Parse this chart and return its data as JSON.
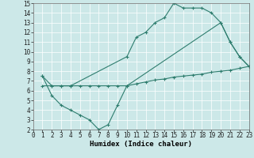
{
  "title": "",
  "xlabel": "Humidex (Indice chaleur)",
  "bg_color": "#cce8e8",
  "line_color": "#2e7d6e",
  "xlim": [
    0,
    23
  ],
  "ylim": [
    2,
    15
  ],
  "xticks": [
    0,
    1,
    2,
    3,
    4,
    5,
    6,
    7,
    8,
    9,
    10,
    11,
    12,
    13,
    14,
    15,
    16,
    17,
    18,
    19,
    20,
    21,
    22,
    23
  ],
  "yticks": [
    2,
    3,
    4,
    5,
    6,
    7,
    8,
    9,
    10,
    11,
    12,
    13,
    14,
    15
  ],
  "line1_x": [
    1,
    2,
    3,
    4,
    10,
    11,
    12,
    13,
    14,
    15,
    16,
    17,
    18,
    19,
    20,
    21,
    22,
    23
  ],
  "line1_y": [
    7.5,
    6.5,
    6.5,
    6.5,
    9.5,
    11.5,
    12.0,
    13.0,
    13.5,
    15.0,
    14.5,
    14.5,
    14.5,
    14.0,
    13.0,
    11.0,
    9.5,
    8.5
  ],
  "line2_x": [
    1,
    2,
    3,
    4,
    5,
    6,
    7,
    8,
    9,
    10,
    20,
    21,
    22,
    23
  ],
  "line2_y": [
    7.5,
    5.5,
    4.5,
    4.0,
    3.5,
    3.0,
    2.0,
    2.5,
    4.5,
    6.5,
    13.0,
    11.0,
    9.5,
    8.5
  ],
  "line3_x": [
    1,
    2,
    3,
    4,
    5,
    6,
    7,
    8,
    9,
    10,
    11,
    12,
    13,
    14,
    15,
    16,
    17,
    18,
    19,
    20,
    21,
    22,
    23
  ],
  "line3_y": [
    6.5,
    6.5,
    6.5,
    6.5,
    6.5,
    6.5,
    6.5,
    6.5,
    6.5,
    6.5,
    6.7,
    6.9,
    7.1,
    7.2,
    7.4,
    7.5,
    7.6,
    7.7,
    7.9,
    8.0,
    8.1,
    8.3,
    8.5
  ],
  "lw": 0.8,
  "ms": 3,
  "tick_fs": 5.5,
  "xlabel_fs": 6.5
}
